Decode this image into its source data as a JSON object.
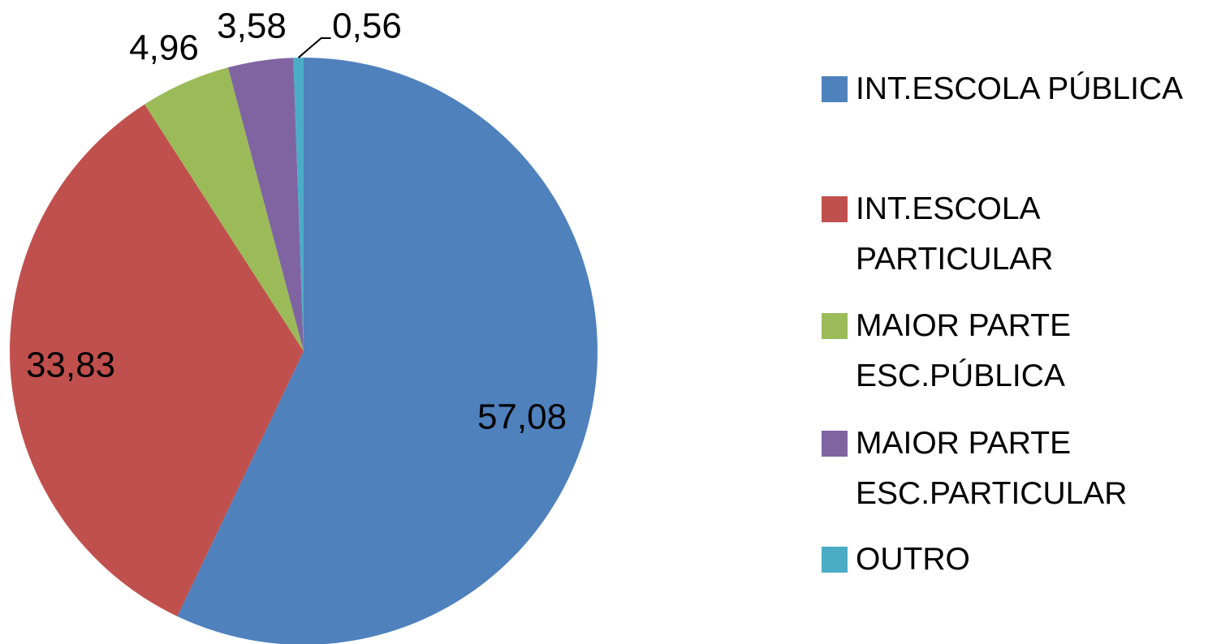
{
  "chart_data": {
    "type": "pie",
    "categories": [
      "INT.ESCOLA PÚBLICA",
      "INT.ESCOLA PARTICULAR",
      "MAIOR PARTE ESC.PÚBLICA",
      "MAIOR PARTE ESC.PARTICULAR",
      "OUTRO"
    ],
    "values": [
      57.08,
      33.83,
      4.96,
      3.58,
      0.56
    ],
    "value_labels": [
      "57,08",
      "33,83",
      "4,96",
      "3,58",
      "0,56"
    ],
    "colors": [
      "#4f81bd",
      "#c0504d",
      "#9bbb59",
      "#8064a2",
      "#4bacc6"
    ],
    "legend": "right"
  }
}
